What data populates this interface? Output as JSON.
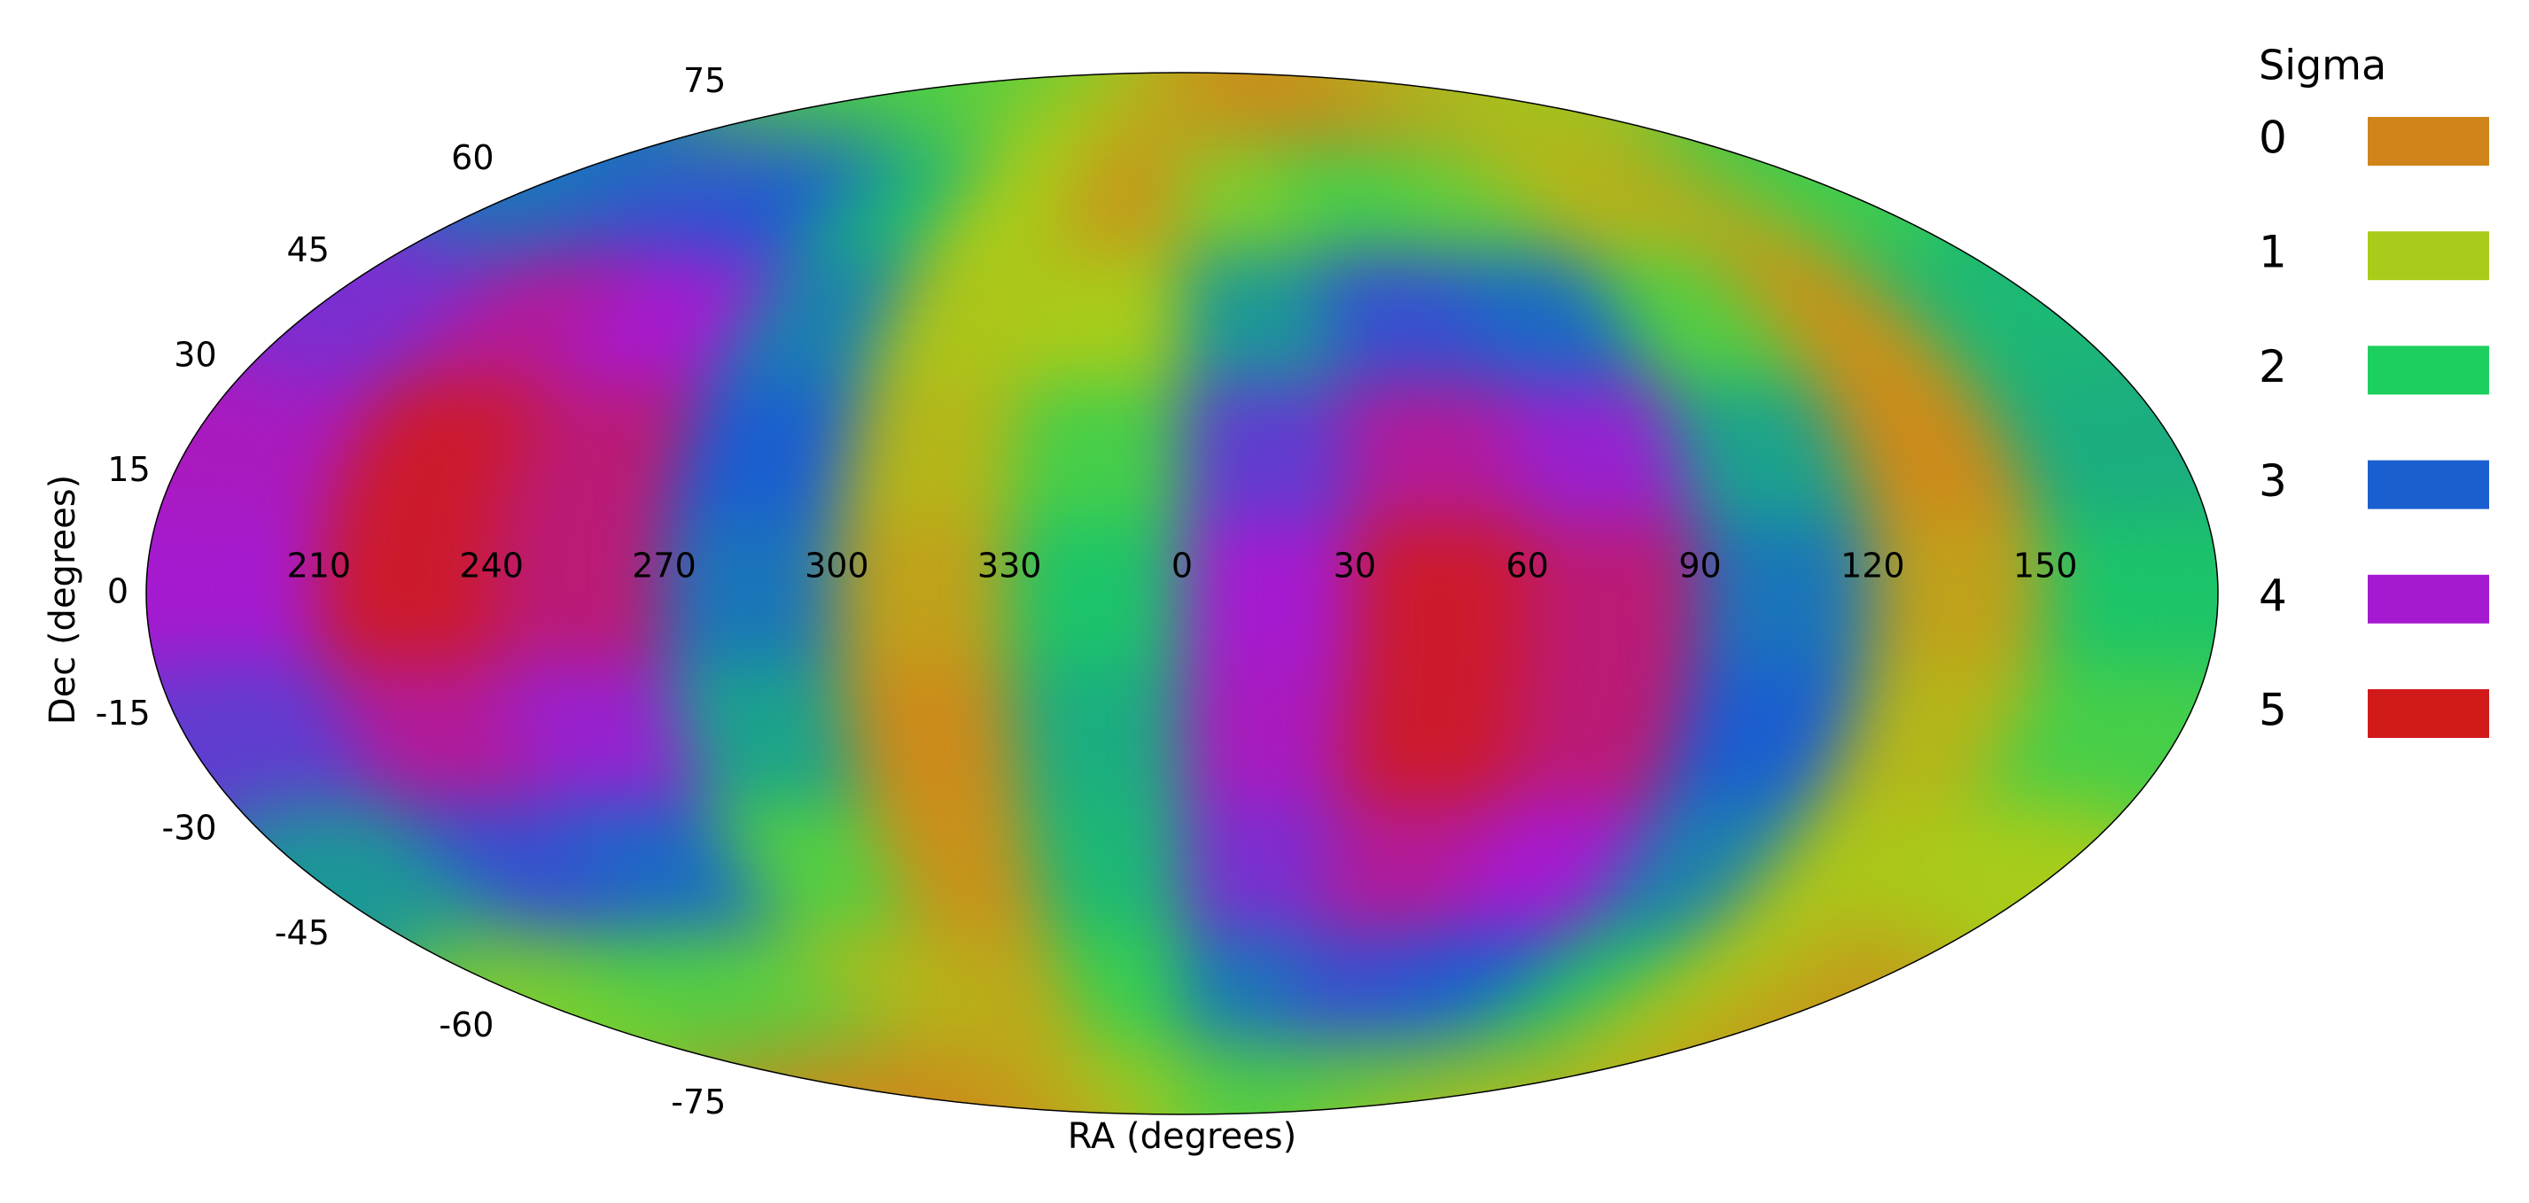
{
  "chart_data": {
    "type": "mollweide",
    "xlabel": "RA (degrees)",
    "ylabel": "Dec (degrees)",
    "xticks": [
      210,
      240,
      270,
      300,
      330,
      0,
      30,
      60,
      90,
      120,
      150
    ],
    "yticks": [
      75,
      60,
      45,
      30,
      15,
      0,
      -15,
      -30,
      -45,
      -60,
      -75
    ],
    "ylim": [
      -90,
      90
    ],
    "x": [
      15,
      45,
      75,
      105,
      135,
      165,
      195,
      225,
      255,
      285,
      315,
      345
    ],
    "y": [
      80,
      60,
      40,
      20,
      0,
      -20,
      -40,
      -60,
      -80
    ],
    "values": [
      [
        0.2,
        0.0,
        0.1,
        0.4,
        0.8,
        1.2,
        1.6,
        1.7,
        1.6,
        1.3,
        0.9,
        0.5
      ],
      [
        1.3,
        1.7,
        1.5,
        0.7,
        0.5,
        1.8,
        2.8,
        3.2,
        3.0,
        2.2,
        1.0,
        0.3
      ],
      [
        2.5,
        3.2,
        2.9,
        1.6,
        0.2,
        2.2,
        3.7,
        4.3,
        4.0,
        2.7,
        0.9,
        1.0
      ],
      [
        3.5,
        4.3,
        3.9,
        2.4,
        0.1,
        2.3,
        4.1,
        4.9,
        4.5,
        3.0,
        0.7,
        1.7
      ],
      [
        4.0,
        4.9,
        4.5,
        2.8,
        0.4,
        2.1,
        4.0,
        4.9,
        4.5,
        2.8,
        0.4,
        2.1
      ],
      [
        4.1,
        4.9,
        4.5,
        3.0,
        0.7,
        1.7,
        3.5,
        4.3,
        3.9,
        2.4,
        0.1,
        2.3
      ],
      [
        3.7,
        4.3,
        4.0,
        2.7,
        0.9,
        1.0,
        2.5,
        3.2,
        2.9,
        1.6,
        0.2,
        2.2
      ],
      [
        2.8,
        3.2,
        3.0,
        2.2,
        1.0,
        0.3,
        1.3,
        1.7,
        1.5,
        0.7,
        0.5,
        1.8
      ],
      [
        1.6,
        1.7,
        1.6,
        1.3,
        0.9,
        0.5,
        0.2,
        0.0,
        0.1,
        0.4,
        0.8,
        1.2
      ]
    ],
    "colorbar": {
      "title": "Sigma",
      "levels": [
        0,
        1,
        2,
        3,
        4,
        5
      ],
      "colors": [
        "#d0841a",
        "#a8cc19",
        "#1ccf5e",
        "#1a5ed0",
        "#a51ad0",
        "#d01a1a"
      ]
    }
  }
}
